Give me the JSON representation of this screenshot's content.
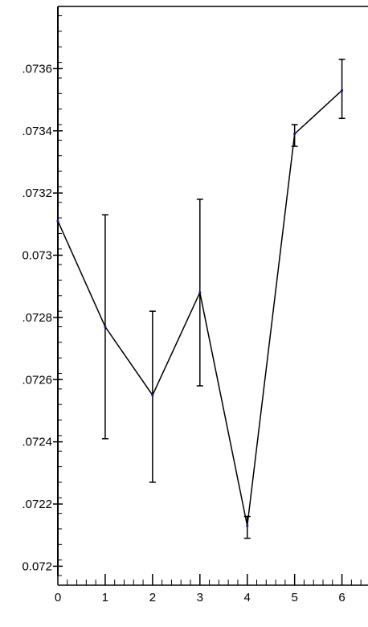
{
  "chart_data": {
    "type": "line",
    "title": "",
    "xlabel": "",
    "ylabel": "",
    "x": [
      0,
      1,
      2,
      3,
      4,
      5,
      6
    ],
    "series": [
      {
        "values": [
          0.07311,
          0.07277,
          0.07255,
          0.07288,
          0.07213,
          0.07339,
          0.07353
        ],
        "err_low": [
          0.07311,
          0.07241,
          0.07227,
          0.07258,
          0.07209,
          0.07335,
          0.07344
        ],
        "err_high": [
          0.07311,
          0.07313,
          0.07282,
          0.07318,
          0.07216,
          0.07342,
          0.07363
        ]
      }
    ],
    "xlim": [
      0,
      6.5
    ],
    "ylim": [
      0.07197,
      0.0738
    ],
    "x_ticks": [
      0,
      1,
      2,
      3,
      4,
      5,
      6
    ],
    "x_tick_labels": [
      "0",
      "1",
      "2",
      "3",
      "4",
      "5",
      "6"
    ],
    "y_ticks": [
      0.072,
      0.0722,
      0.0724,
      0.0726,
      0.0728,
      0.073,
      0.0732,
      0.0734,
      0.0736
    ],
    "y_tick_labels": [
      ".0722",
      ".0724",
      ".0726",
      ".0728",
      "0.073",
      ".0732",
      ".0734",
      ".0736"
    ],
    "y_tick_labels_full": [
      "0.072",
      ".0722",
      ".0724",
      ".0726",
      ".0728",
      "0.073",
      ".0732",
      ".0734",
      ".0736"
    ],
    "grid": false,
    "colors": {
      "line": "#000000",
      "marker": "#1a1aa0",
      "axis": "#000000"
    }
  }
}
